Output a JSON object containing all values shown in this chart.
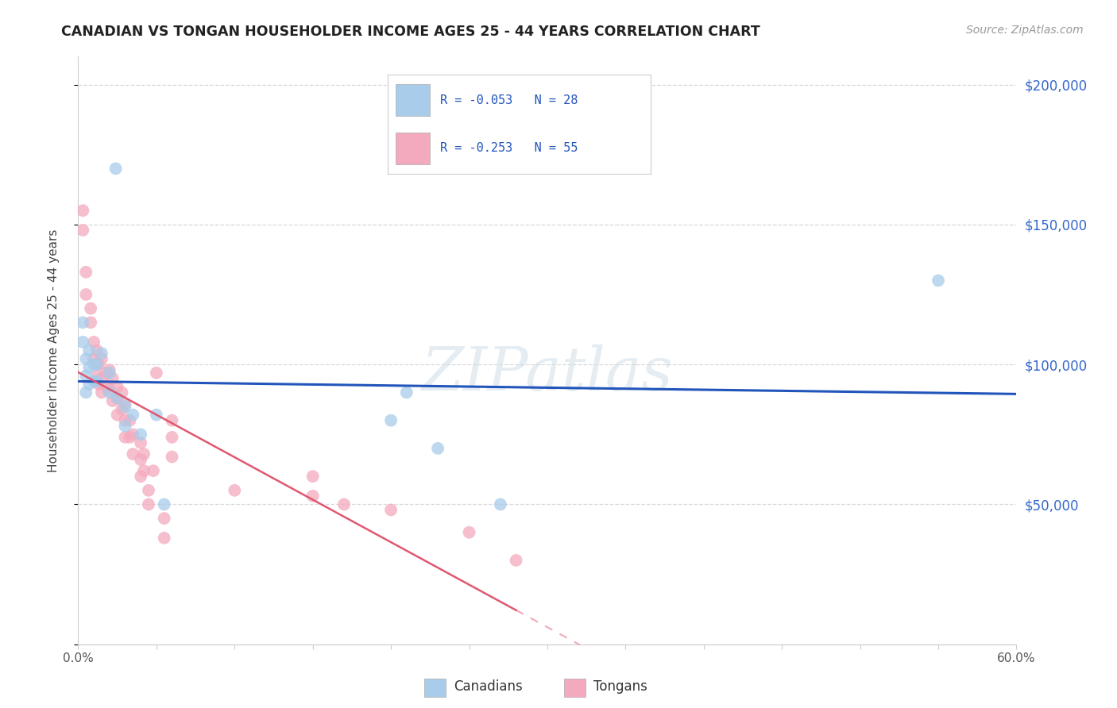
{
  "title": "CANADIAN VS TONGAN HOUSEHOLDER INCOME AGES 25 - 44 YEARS CORRELATION CHART",
  "source": "Source: ZipAtlas.com",
  "ylabel": "Householder Income Ages 25 - 44 years",
  "xmin": 0.0,
  "xmax": 0.6,
  "ymin": 0,
  "ymax": 210000,
  "yticks": [
    0,
    50000,
    100000,
    150000,
    200000
  ],
  "ytick_labels": [
    "",
    "$50,000",
    "$100,000",
    "$150,000",
    "$200,000"
  ],
  "watermark": "ZIPatlas",
  "canadians_color": "#a8ccea",
  "tongans_color": "#f4aabe",
  "canadians_line_color": "#2255bb",
  "tongans_line_color": "#e05870",
  "background_color": "#ffffff",
  "grid_color": "#d8d8d8",
  "legend_r_color": "#2255bb",
  "legend_box1_color": "#a8ccea",
  "legend_box2_color": "#f4aabe",
  "canadians_x": [
    0.024,
    0.003,
    0.003,
    0.005,
    0.005,
    0.005,
    0.007,
    0.007,
    0.007,
    0.01,
    0.01,
    0.012,
    0.012,
    0.015,
    0.02,
    0.02,
    0.025,
    0.03,
    0.03,
    0.035,
    0.04,
    0.05,
    0.055,
    0.2,
    0.21,
    0.23,
    0.27,
    0.55
  ],
  "canadians_y": [
    170000,
    115000,
    108000,
    102000,
    96000,
    90000,
    105000,
    99000,
    93000,
    100000,
    94000,
    100000,
    94000,
    104000,
    97000,
    90000,
    88000,
    85000,
    78000,
    82000,
    75000,
    82000,
    50000,
    80000,
    90000,
    70000,
    50000,
    130000
  ],
  "tongans_x": [
    0.003,
    0.003,
    0.005,
    0.005,
    0.008,
    0.008,
    0.01,
    0.01,
    0.012,
    0.012,
    0.012,
    0.013,
    0.013,
    0.015,
    0.015,
    0.015,
    0.018,
    0.018,
    0.02,
    0.02,
    0.022,
    0.022,
    0.025,
    0.025,
    0.025,
    0.028,
    0.028,
    0.03,
    0.03,
    0.03,
    0.033,
    0.033,
    0.035,
    0.035,
    0.04,
    0.04,
    0.04,
    0.042,
    0.042,
    0.045,
    0.045,
    0.048,
    0.05,
    0.055,
    0.055,
    0.06,
    0.06,
    0.06,
    0.1,
    0.15,
    0.15,
    0.17,
    0.2,
    0.25,
    0.28
  ],
  "tongans_y": [
    155000,
    148000,
    133000,
    125000,
    120000,
    115000,
    108000,
    102000,
    105000,
    100000,
    96000,
    100000,
    93000,
    102000,
    95000,
    90000,
    97000,
    92000,
    98000,
    91000,
    95000,
    87000,
    92000,
    88000,
    82000,
    90000,
    84000,
    86000,
    80000,
    74000,
    80000,
    74000,
    75000,
    68000,
    72000,
    66000,
    60000,
    68000,
    62000,
    55000,
    50000,
    62000,
    97000,
    45000,
    38000,
    80000,
    74000,
    67000,
    55000,
    60000,
    53000,
    50000,
    48000,
    40000,
    30000
  ]
}
